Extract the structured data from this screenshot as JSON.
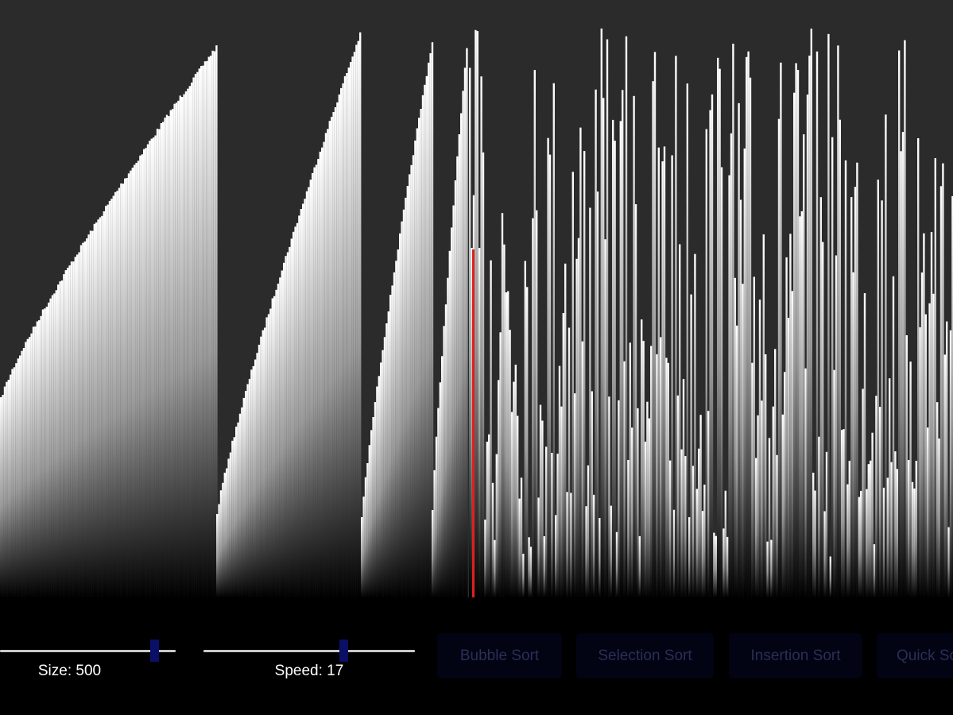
{
  "colors": {
    "background": "#2b2b2b",
    "control_bar": "#000000",
    "bar_top": "#ffffff",
    "bar_bottom": "#000000",
    "active_bar": "#e0201b",
    "slider_thumb": "#0b0f66",
    "slider_track": "#c9c9c9",
    "button_bg": "#020313",
    "button_text": "#2a2f55"
  },
  "array": {
    "size": 500,
    "active_index": 90
  },
  "controls": {
    "size_label": "Size: 500",
    "size_value": 500,
    "size_fraction": 0.88,
    "speed_label": "Speed: 17",
    "speed_value": 17,
    "speed_fraction": 0.66
  },
  "buttons": {
    "bubble": "Bubble Sort",
    "selection": "Selection Sort",
    "insertion": "Insertion Sort",
    "quick": "Quick Sort"
  }
}
